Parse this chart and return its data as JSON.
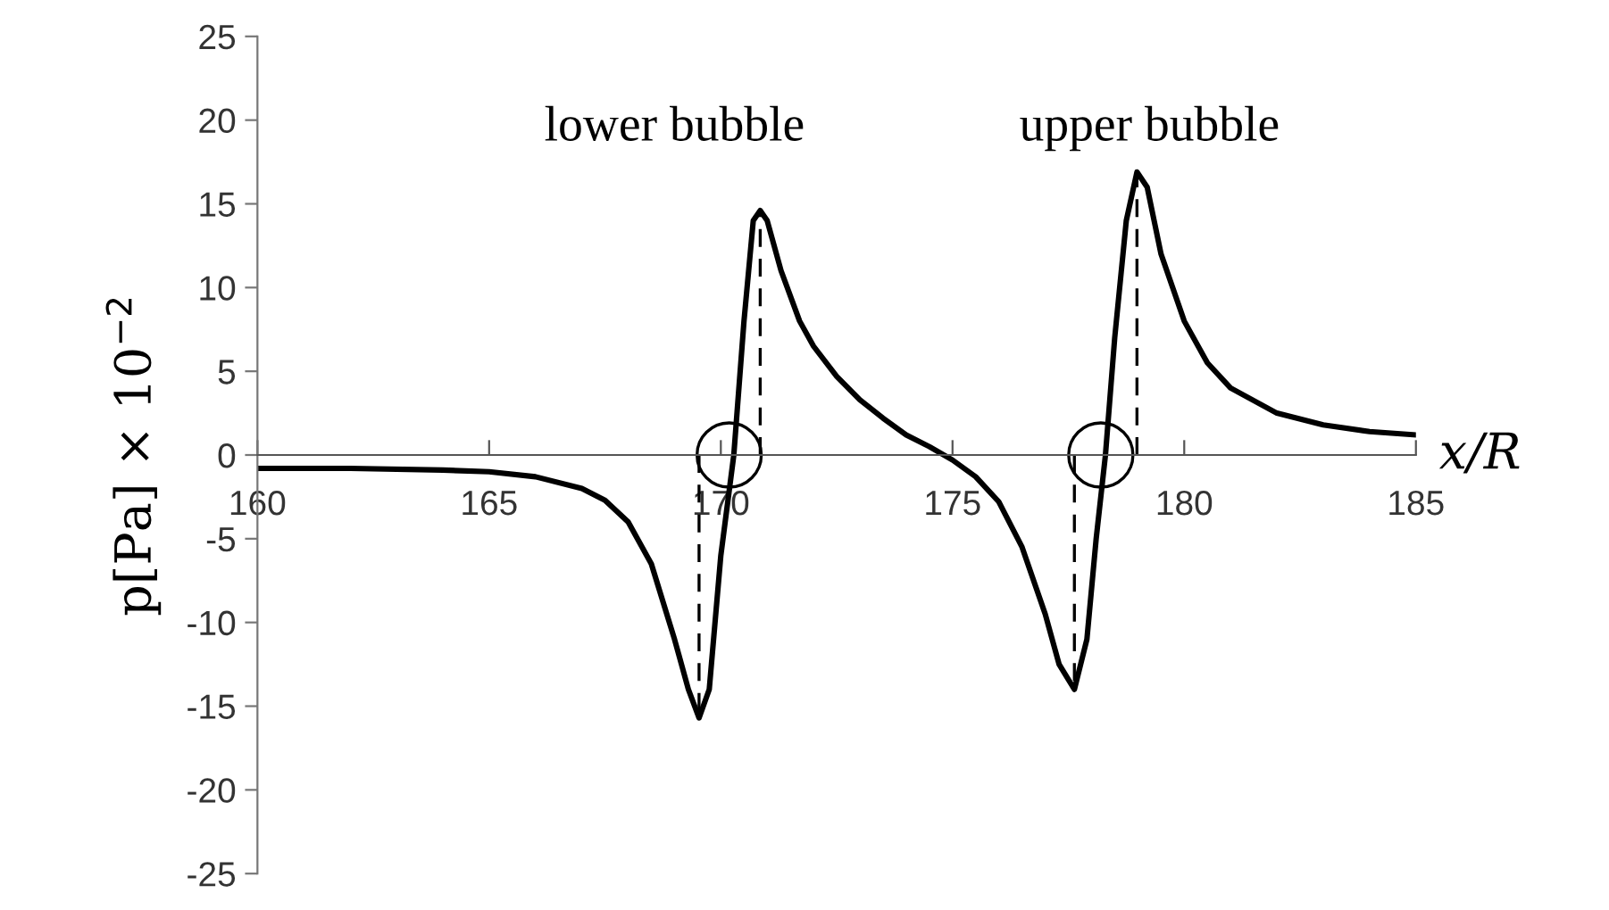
{
  "chart_data": {
    "type": "line",
    "xlabel": "x/R",
    "ylabel": "p[Pa] × 10$^{−2}$",
    "xlim": [
      160,
      185
    ],
    "xticks": [
      160,
      165,
      170,
      175,
      180,
      185
    ],
    "ylim": [
      -25,
      25
    ],
    "yticks": [
      -25,
      -20,
      -15,
      -10,
      -5,
      0,
      5,
      10,
      15,
      20,
      25
    ],
    "grid": false,
    "legend": false,
    "marker": "none",
    "annotations": [
      "lower bubble",
      "upper bubble"
    ],
    "series": [
      {
        "color": "#000000",
        "line_style": "solid",
        "x": [
          160,
          162,
          164,
          165,
          166,
          167,
          167.5,
          168,
          168.5,
          169,
          169.3,
          169.53,
          169.75,
          170,
          170.28,
          170.5,
          170.7,
          170.85,
          171.0,
          171.3,
          171.7,
          172,
          172.5,
          173,
          173.5,
          174,
          174.5,
          175,
          175.5,
          176,
          176.5,
          177,
          177.3,
          177.63,
          177.9,
          178.1,
          178.3,
          178.5,
          178.75,
          178.98,
          179.2,
          179.5,
          180,
          180.5,
          181,
          182,
          183,
          184,
          185
        ],
        "values": [
          -0.8,
          -0.8,
          -0.9,
          -1.0,
          -1.3,
          -2,
          -2.7,
          -4,
          -6.5,
          -11,
          -14,
          -15.7,
          -14,
          -6,
          0,
          8,
          14,
          14.6,
          14,
          11,
          8,
          6.5,
          4.7,
          3.3,
          2.2,
          1.2,
          0.5,
          -0.3,
          -1.3,
          -2.8,
          -5.5,
          -9.5,
          -12.5,
          -14,
          -11,
          -5,
          0,
          7,
          14,
          16.9,
          16,
          12,
          8,
          5.5,
          4,
          2.5,
          1.8,
          1.4,
          1.2
        ]
      },
      {
        "color": "#000000",
        "line_style": "dashed",
        "x": [
          169.53,
          169.53
        ],
        "values": [
          0,
          -15.7
        ]
      },
      {
        "color": "#000000",
        "line_style": "dashed",
        "x": [
          170.85,
          170.85
        ],
        "values": [
          0,
          14.6
        ]
      },
      {
        "color": "#000000",
        "line_style": "dashed",
        "x": [
          177.63,
          177.63
        ],
        "values": [
          0,
          -14
        ]
      },
      {
        "color": "#000000",
        "line_style": "dashed",
        "x": [
          178.98,
          178.98
        ],
        "values": [
          0,
          16.9
        ]
      }
    ]
  }
}
